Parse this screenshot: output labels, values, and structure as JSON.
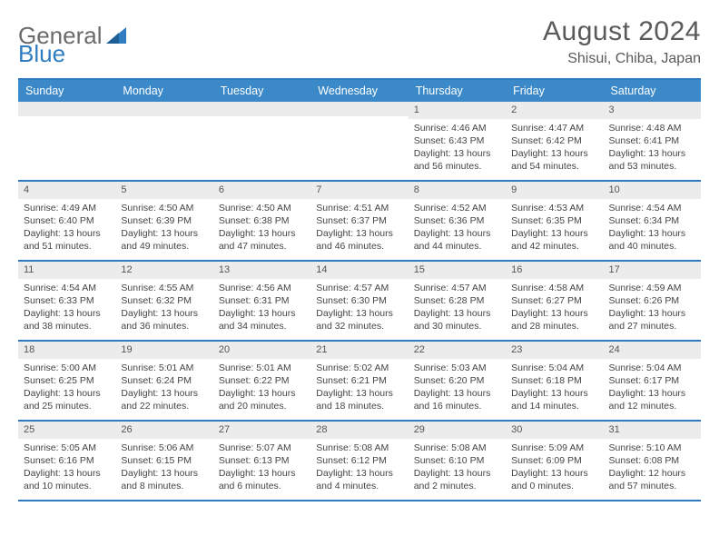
{
  "brand": {
    "part1": "General",
    "part2": "Blue"
  },
  "title": "August 2024",
  "location": "Shisui, Chiba, Japan",
  "colors": {
    "header_bg": "#3b89c9",
    "accent_border": "#2f7dc0",
    "daynum_bg": "#ececec",
    "logo_gray": "#6b6b6b",
    "text": "#444444",
    "title_color": "#5a5a5a"
  },
  "dayNames": [
    "Sunday",
    "Monday",
    "Tuesday",
    "Wednesday",
    "Thursday",
    "Friday",
    "Saturday"
  ],
  "weeks": [
    [
      {
        "n": "",
        "sr": "",
        "ss": "",
        "dl": ""
      },
      {
        "n": "",
        "sr": "",
        "ss": "",
        "dl": ""
      },
      {
        "n": "",
        "sr": "",
        "ss": "",
        "dl": ""
      },
      {
        "n": "",
        "sr": "",
        "ss": "",
        "dl": ""
      },
      {
        "n": "1",
        "sr": "4:46 AM",
        "ss": "6:43 PM",
        "dl": "13 hours and 56 minutes."
      },
      {
        "n": "2",
        "sr": "4:47 AM",
        "ss": "6:42 PM",
        "dl": "13 hours and 54 minutes."
      },
      {
        "n": "3",
        "sr": "4:48 AM",
        "ss": "6:41 PM",
        "dl": "13 hours and 53 minutes."
      }
    ],
    [
      {
        "n": "4",
        "sr": "4:49 AM",
        "ss": "6:40 PM",
        "dl": "13 hours and 51 minutes."
      },
      {
        "n": "5",
        "sr": "4:50 AM",
        "ss": "6:39 PM",
        "dl": "13 hours and 49 minutes."
      },
      {
        "n": "6",
        "sr": "4:50 AM",
        "ss": "6:38 PM",
        "dl": "13 hours and 47 minutes."
      },
      {
        "n": "7",
        "sr": "4:51 AM",
        "ss": "6:37 PM",
        "dl": "13 hours and 46 minutes."
      },
      {
        "n": "8",
        "sr": "4:52 AM",
        "ss": "6:36 PM",
        "dl": "13 hours and 44 minutes."
      },
      {
        "n": "9",
        "sr": "4:53 AM",
        "ss": "6:35 PM",
        "dl": "13 hours and 42 minutes."
      },
      {
        "n": "10",
        "sr": "4:54 AM",
        "ss": "6:34 PM",
        "dl": "13 hours and 40 minutes."
      }
    ],
    [
      {
        "n": "11",
        "sr": "4:54 AM",
        "ss": "6:33 PM",
        "dl": "13 hours and 38 minutes."
      },
      {
        "n": "12",
        "sr": "4:55 AM",
        "ss": "6:32 PM",
        "dl": "13 hours and 36 minutes."
      },
      {
        "n": "13",
        "sr": "4:56 AM",
        "ss": "6:31 PM",
        "dl": "13 hours and 34 minutes."
      },
      {
        "n": "14",
        "sr": "4:57 AM",
        "ss": "6:30 PM",
        "dl": "13 hours and 32 minutes."
      },
      {
        "n": "15",
        "sr": "4:57 AM",
        "ss": "6:28 PM",
        "dl": "13 hours and 30 minutes."
      },
      {
        "n": "16",
        "sr": "4:58 AM",
        "ss": "6:27 PM",
        "dl": "13 hours and 28 minutes."
      },
      {
        "n": "17",
        "sr": "4:59 AM",
        "ss": "6:26 PM",
        "dl": "13 hours and 27 minutes."
      }
    ],
    [
      {
        "n": "18",
        "sr": "5:00 AM",
        "ss": "6:25 PM",
        "dl": "13 hours and 25 minutes."
      },
      {
        "n": "19",
        "sr": "5:01 AM",
        "ss": "6:24 PM",
        "dl": "13 hours and 22 minutes."
      },
      {
        "n": "20",
        "sr": "5:01 AM",
        "ss": "6:22 PM",
        "dl": "13 hours and 20 minutes."
      },
      {
        "n": "21",
        "sr": "5:02 AM",
        "ss": "6:21 PM",
        "dl": "13 hours and 18 minutes."
      },
      {
        "n": "22",
        "sr": "5:03 AM",
        "ss": "6:20 PM",
        "dl": "13 hours and 16 minutes."
      },
      {
        "n": "23",
        "sr": "5:04 AM",
        "ss": "6:18 PM",
        "dl": "13 hours and 14 minutes."
      },
      {
        "n": "24",
        "sr": "5:04 AM",
        "ss": "6:17 PM",
        "dl": "13 hours and 12 minutes."
      }
    ],
    [
      {
        "n": "25",
        "sr": "5:05 AM",
        "ss": "6:16 PM",
        "dl": "13 hours and 10 minutes."
      },
      {
        "n": "26",
        "sr": "5:06 AM",
        "ss": "6:15 PM",
        "dl": "13 hours and 8 minutes."
      },
      {
        "n": "27",
        "sr": "5:07 AM",
        "ss": "6:13 PM",
        "dl": "13 hours and 6 minutes."
      },
      {
        "n": "28",
        "sr": "5:08 AM",
        "ss": "6:12 PM",
        "dl": "13 hours and 4 minutes."
      },
      {
        "n": "29",
        "sr": "5:08 AM",
        "ss": "6:10 PM",
        "dl": "13 hours and 2 minutes."
      },
      {
        "n": "30",
        "sr": "5:09 AM",
        "ss": "6:09 PM",
        "dl": "13 hours and 0 minutes."
      },
      {
        "n": "31",
        "sr": "5:10 AM",
        "ss": "6:08 PM",
        "dl": "12 hours and 57 minutes."
      }
    ]
  ],
  "labels": {
    "sunrise_prefix": "Sunrise: ",
    "sunset_prefix": "Sunset: ",
    "daylight_prefix": "Daylight: "
  }
}
